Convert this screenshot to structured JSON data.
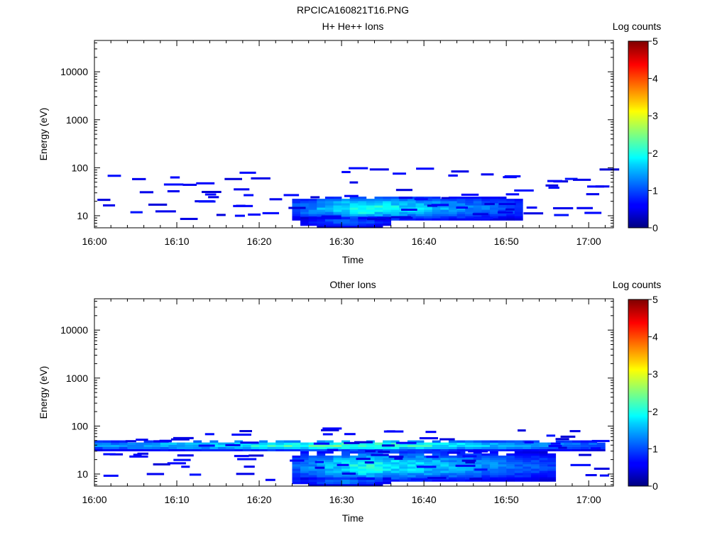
{
  "figure": {
    "title": "RPCICA160821T16.PNG"
  },
  "chart_data": [
    {
      "type": "heatmap",
      "title": "H+ He++ Ions",
      "xlabel": "Time",
      "ylabel": "Energy (eV)",
      "x_range": [
        "16:00",
        "17:03"
      ],
      "xticks": [
        "16:00",
        "16:10",
        "16:20",
        "16:30",
        "16:40",
        "16:50",
        "17:00"
      ],
      "y_scale": "log",
      "ylim": [
        5.6,
        45000
      ],
      "yticks": [
        "10",
        "100",
        "1000",
        "10000"
      ],
      "colorbar": {
        "label": "Log counts",
        "range": [
          0,
          5
        ],
        "ticks": [
          "0",
          "1",
          "2",
          "3",
          "4",
          "5"
        ]
      },
      "features": [
        {
          "type": "band",
          "t_start": "16:24",
          "t_end": "16:52",
          "e_low": 8,
          "e_high": 24,
          "value_peak": 2.0,
          "peak_time": "16:32"
        },
        {
          "type": "band",
          "t_start": "16:25",
          "t_end": "16:36",
          "e_low": 5.6,
          "e_high": 9,
          "value_peak": 1.2
        },
        {
          "type": "sporadic",
          "t_start": "16:00",
          "t_end": "17:02",
          "e_low": 8,
          "e_high": 95,
          "value": 0.6
        }
      ]
    },
    {
      "type": "heatmap",
      "title": "Other Ions",
      "xlabel": "Time",
      "ylabel": "Energy (eV)",
      "x_range": [
        "16:00",
        "17:03"
      ],
      "xticks": [
        "16:00",
        "16:10",
        "16:20",
        "16:30",
        "16:40",
        "16:50",
        "17:00"
      ],
      "y_scale": "log",
      "ylim": [
        5.6,
        45000
      ],
      "yticks": [
        "10",
        "100",
        "1000",
        "10000"
      ],
      "colorbar": {
        "label": "Log counts",
        "range": [
          0,
          5
        ],
        "ticks": [
          "0",
          "1",
          "2",
          "3",
          "4",
          "5"
        ]
      },
      "features": [
        {
          "type": "band",
          "t_start": "16:00",
          "t_end": "17:02",
          "e_low": 30,
          "e_high": 48,
          "value_peak": 2.3
        },
        {
          "type": "band",
          "t_start": "16:24",
          "t_end": "16:56",
          "e_low": 7,
          "e_high": 28,
          "value_peak": 2.0,
          "peak_time": "16:32"
        },
        {
          "type": "band",
          "t_start": "16:24",
          "t_end": "16:36",
          "e_low": 5.6,
          "e_high": 8,
          "value_peak": 1.3
        },
        {
          "type": "sporadic",
          "t_start": "16:00",
          "t_end": "17:02",
          "e_low": 7,
          "e_high": 85,
          "value": 0.6
        }
      ]
    }
  ]
}
